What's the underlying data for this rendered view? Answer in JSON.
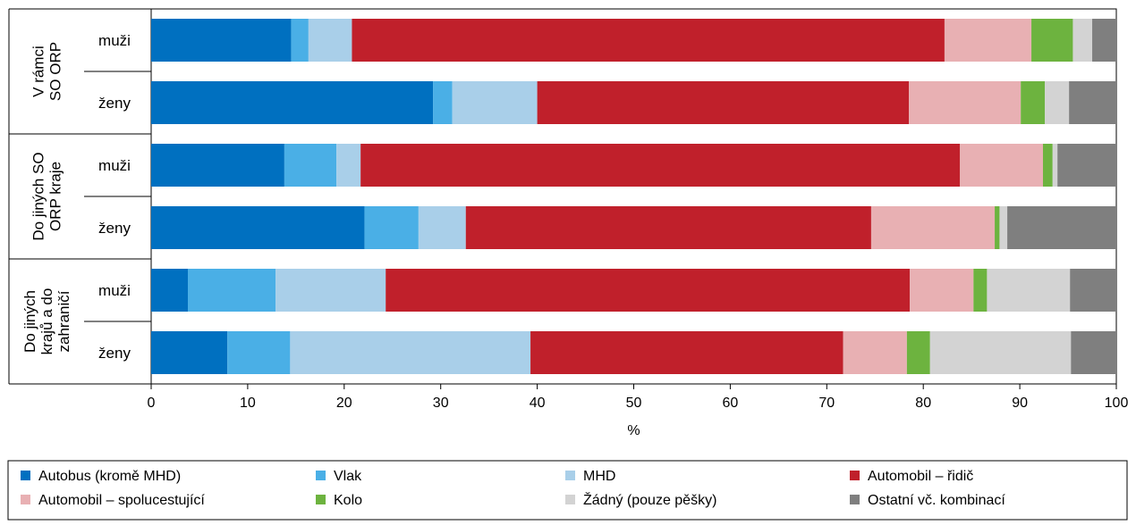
{
  "chart_data": {
    "type": "bar",
    "orientation": "horizontal",
    "stacked": true,
    "xlabel": "%",
    "xlim": [
      0,
      100
    ],
    "xticks": [
      "0",
      "10",
      "20",
      "30",
      "40",
      "50",
      "60",
      "70",
      "80",
      "90",
      "100"
    ],
    "groups": [
      {
        "label_lines": [
          "V rámci",
          "SO ORP"
        ]
      },
      {
        "label_lines": [
          "Do jiných SO",
          "ORP kraje"
        ]
      },
      {
        "label_lines": [
          "Do jiných",
          "krajů a do",
          "zahraničí"
        ]
      }
    ],
    "categories": [
      "muži",
      "ženy",
      "muži",
      "ženy",
      "muži",
      "ženy"
    ],
    "series": [
      {
        "name": "Autobus (kromě MHD)",
        "color": "#0070c0",
        "values": [
          14.5,
          29.2,
          13.8,
          22.1,
          3.8,
          7.9
        ]
      },
      {
        "name": "Vlak",
        "color": "#4aafe6",
        "values": [
          1.8,
          2.0,
          5.4,
          5.6,
          9.1,
          6.5
        ]
      },
      {
        "name": "MHD",
        "color": "#a9cfe9",
        "values": [
          4.5,
          8.8,
          2.5,
          4.9,
          11.4,
          24.9
        ]
      },
      {
        "name": "Automobil – řidič",
        "color": "#c0202b",
        "values": [
          61.4,
          38.5,
          62.1,
          42.0,
          54.3,
          32.4
        ]
      },
      {
        "name": "Automobil – spolucestující",
        "color": "#e8b0b3",
        "values": [
          9.0,
          11.6,
          8.6,
          12.8,
          6.6,
          6.6
        ]
      },
      {
        "name": "Kolo",
        "color": "#6db33f",
        "values": [
          4.3,
          2.5,
          1.0,
          0.5,
          1.4,
          2.4
        ]
      },
      {
        "name": "Žádný (pouze pěšky)",
        "color": "#d3d3d3",
        "values": [
          2.0,
          2.5,
          0.5,
          0.8,
          8.6,
          14.6
        ]
      },
      {
        "name": "Ostatní vč. kombinací",
        "color": "#7f7f7f",
        "values": [
          2.5,
          4.9,
          6.1,
          11.3,
          4.8,
          4.7
        ]
      }
    ],
    "legend_position": "bottom",
    "grid": false
  }
}
